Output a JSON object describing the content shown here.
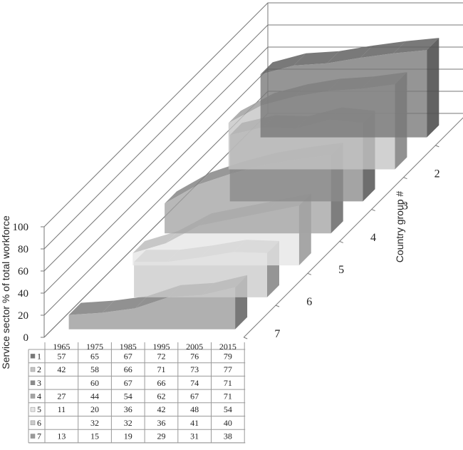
{
  "chart_data": {
    "type": "area",
    "categories": [
      "1965",
      "1975",
      "1985",
      "1995",
      "2005",
      "2015"
    ],
    "ylabel": "Service sector % of total workforce",
    "zlabel": "Country group #",
    "ylim": [
      0,
      100
    ],
    "yticks": [
      0,
      20,
      40,
      60,
      80,
      100
    ],
    "series": [
      {
        "name": "1",
        "values": [
          57,
          65,
          67,
          72,
          76,
          79
        ],
        "labels": [
          "57",
          "65",
          "67",
          "72",
          "76",
          "79"
        ],
        "color": "#777777"
      },
      {
        "name": "2",
        "values": [
          42,
          58,
          66,
          71,
          73,
          77
        ],
        "labels": [
          "42",
          "58",
          "66",
          "71",
          "73",
          "77"
        ],
        "color": "#c4c4c4"
      },
      {
        "name": "3",
        "values": [
          null,
          60,
          67,
          66,
          74,
          71
        ],
        "labels": [
          "",
          "60",
          "67",
          "66",
          "74",
          "71"
        ],
        "color": "#8a8a8a"
      },
      {
        "name": "4",
        "values": [
          27,
          44,
          54,
          62,
          67,
          71
        ],
        "labels": [
          "27",
          "44",
          "54",
          "62",
          "67",
          "71"
        ],
        "color": "#a4a4a4"
      },
      {
        "name": "5",
        "values": [
          11,
          20,
          36,
          42,
          48,
          54
        ],
        "labels": [
          "11",
          "20",
          "36",
          "42",
          "48",
          "54"
        ],
        "color": "#e6e6e6"
      },
      {
        "name": "6",
        "values": [
          null,
          32,
          32,
          36,
          41,
          40
        ],
        "labels": [
          "",
          "32",
          "32",
          "36",
          "41",
          "40"
        ],
        "color": "#cbcbcb"
      },
      {
        "name": "7",
        "values": [
          13,
          15,
          19,
          29,
          31,
          38
        ],
        "labels": [
          "13",
          "15",
          "19",
          "29",
          "31",
          "38"
        ],
        "color": "#9a9a9a"
      }
    ],
    "grid": true,
    "legend": "data-table-below"
  }
}
